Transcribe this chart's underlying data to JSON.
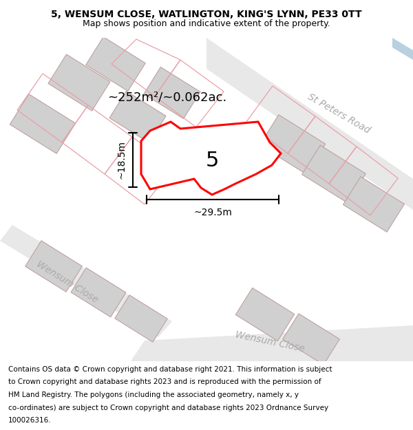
{
  "title_line1": "5, WENSUM CLOSE, WATLINGTON, KING'S LYNN, PE33 0TT",
  "title_line2": "Map shows position and indicative extent of the property.",
  "footer_lines": [
    "Contains OS data © Crown copyright and database right 2021. This information is subject",
    "to Crown copyright and database rights 2023 and is reproduced with the permission of",
    "HM Land Registry. The polygons (including the associated geometry, namely x, y",
    "co-ordinates) are subject to Crown copyright and database rights 2023 Ordnance Survey",
    "100026316."
  ],
  "area_label": "~252m²/~0.062ac.",
  "number_label": "5",
  "dim_width": "~29.5m",
  "dim_height": "~18.5m",
  "road_label_1": "St Peters Road",
  "road_label_2": "Wensum Close",
  "road_label_3": "Wensum Close",
  "map_bg": "#f0efed",
  "road_fill": "#e8e8e8",
  "building_fill": "#d0d0d0",
  "building_edge": "#c0a0a0",
  "plot_edge": "#e8a0a8",
  "main_plot_edge": "#ff0000",
  "blue_band": "#b8d0e0",
  "dim_line_color": "#000000",
  "text_color": "#000000",
  "road_text_color": "#aaaaaa",
  "title_fontsize": 10,
  "footer_fontsize": 7.5
}
